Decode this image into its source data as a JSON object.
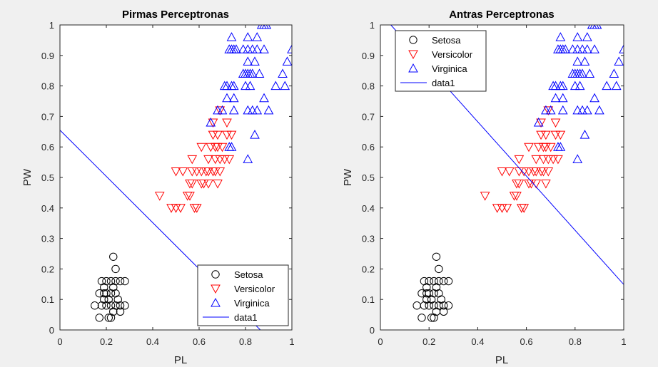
{
  "chart_data": [
    {
      "type": "scatter",
      "title": "Pirmas Perceptronas",
      "xlabel": "PL",
      "ylabel": "PW",
      "xlim": [
        0,
        1
      ],
      "ylim": [
        0,
        1
      ],
      "xticks": [
        "0",
        "0.2",
        "0.4",
        "0.6",
        "0.8",
        "1"
      ],
      "yticks": [
        "0",
        "0.1",
        "0.2",
        "0.3",
        "0.4",
        "0.5",
        "0.6",
        "0.7",
        "0.8",
        "0.9",
        "1"
      ],
      "grid": false,
      "legend_position": "bottom-right",
      "legend": [
        "Setosa",
        "Versicolor",
        "Virginica",
        "data1"
      ],
      "decision_line": {
        "name": "data1",
        "color": "#0000ff",
        "points": [
          [
            0,
            0.655
          ],
          [
            0.864,
            0
          ]
        ]
      }
    },
    {
      "type": "scatter",
      "title": "Antras Perceptronas",
      "xlabel": "PL",
      "ylabel": "PW",
      "xlim": [
        0,
        1
      ],
      "ylim": [
        0,
        1
      ],
      "xticks": [
        "0",
        "0.2",
        "0.4",
        "0.6",
        "0.8",
        "1"
      ],
      "yticks": [
        "0",
        "0.1",
        "0.2",
        "0.3",
        "0.4",
        "0.5",
        "0.6",
        "0.7",
        "0.8",
        "0.9",
        "1"
      ],
      "grid": false,
      "legend_position": "top-left",
      "legend": [
        "Setosa",
        "Versicolor",
        "Virginica",
        "data1"
      ],
      "decision_line": {
        "name": "data1",
        "color": "#0000ff",
        "points": [
          [
            0.043,
            1
          ],
          [
            1,
            0.149
          ]
        ]
      }
    }
  ],
  "series": [
    {
      "name": "Setosa",
      "marker": "circle",
      "color": "#000000",
      "points": [
        [
          0.15,
          0.08
        ],
        [
          0.18,
          0.08
        ],
        [
          0.2,
          0.08
        ],
        [
          0.22,
          0.08
        ],
        [
          0.24,
          0.08
        ],
        [
          0.26,
          0.08
        ],
        [
          0.28,
          0.08
        ],
        [
          0.17,
          0.04
        ],
        [
          0.21,
          0.04
        ],
        [
          0.22,
          0.04
        ],
        [
          0.17,
          0.12
        ],
        [
          0.19,
          0.12
        ],
        [
          0.2,
          0.12
        ],
        [
          0.22,
          0.12
        ],
        [
          0.24,
          0.12
        ],
        [
          0.18,
          0.16
        ],
        [
          0.2,
          0.16
        ],
        [
          0.22,
          0.16
        ],
        [
          0.24,
          0.16
        ],
        [
          0.26,
          0.16
        ],
        [
          0.28,
          0.16
        ],
        [
          0.19,
          0.1
        ],
        [
          0.21,
          0.1
        ],
        [
          0.25,
          0.1
        ],
        [
          0.23,
          0.06
        ],
        [
          0.26,
          0.06
        ],
        [
          0.19,
          0.14
        ],
        [
          0.23,
          0.14
        ],
        [
          0.24,
          0.2
        ],
        [
          0.23,
          0.24
        ]
      ]
    },
    {
      "name": "Versicolor",
      "marker": "triangle-down",
      "color": "#ff0000",
      "points": [
        [
          0.43,
          0.44
        ],
        [
          0.48,
          0.4
        ],
        [
          0.5,
          0.4
        ],
        [
          0.52,
          0.4
        ],
        [
          0.58,
          0.4
        ],
        [
          0.59,
          0.4
        ],
        [
          0.55,
          0.44
        ],
        [
          0.56,
          0.44
        ],
        [
          0.56,
          0.48
        ],
        [
          0.57,
          0.48
        ],
        [
          0.61,
          0.48
        ],
        [
          0.62,
          0.48
        ],
        [
          0.64,
          0.48
        ],
        [
          0.68,
          0.48
        ],
        [
          0.5,
          0.52
        ],
        [
          0.53,
          0.52
        ],
        [
          0.57,
          0.52
        ],
        [
          0.59,
          0.52
        ],
        [
          0.61,
          0.52
        ],
        [
          0.63,
          0.52
        ],
        [
          0.64,
          0.52
        ],
        [
          0.66,
          0.52
        ],
        [
          0.67,
          0.52
        ],
        [
          0.69,
          0.52
        ],
        [
          0.57,
          0.56
        ],
        [
          0.64,
          0.56
        ],
        [
          0.67,
          0.56
        ],
        [
          0.69,
          0.56
        ],
        [
          0.71,
          0.56
        ],
        [
          0.73,
          0.56
        ],
        [
          0.61,
          0.6
        ],
        [
          0.65,
          0.6
        ],
        [
          0.67,
          0.6
        ],
        [
          0.68,
          0.6
        ],
        [
          0.7,
          0.6
        ],
        [
          0.66,
          0.64
        ],
        [
          0.68,
          0.64
        ],
        [
          0.72,
          0.64
        ],
        [
          0.74,
          0.64
        ],
        [
          0.66,
          0.68
        ],
        [
          0.72,
          0.68
        ],
        [
          0.69,
          0.72
        ]
      ]
    },
    {
      "name": "Virginica",
      "marker": "triangle-up",
      "color": "#0000ff",
      "points": [
        [
          0.81,
          0.56
        ],
        [
          0.73,
          0.6
        ],
        [
          0.74,
          0.6
        ],
        [
          0.84,
          0.64
        ],
        [
          0.65,
          0.68
        ],
        [
          0.68,
          0.72
        ],
        [
          0.7,
          0.72
        ],
        [
          0.75,
          0.72
        ],
        [
          0.81,
          0.72
        ],
        [
          0.83,
          0.72
        ],
        [
          0.85,
          0.72
        ],
        [
          0.9,
          0.72
        ],
        [
          0.72,
          0.76
        ],
        [
          0.75,
          0.76
        ],
        [
          0.88,
          0.76
        ],
        [
          0.71,
          0.8
        ],
        [
          0.72,
          0.8
        ],
        [
          0.74,
          0.8
        ],
        [
          0.75,
          0.8
        ],
        [
          0.8,
          0.8
        ],
        [
          0.82,
          0.8
        ],
        [
          0.93,
          0.8
        ],
        [
          0.97,
          0.8
        ],
        [
          0.79,
          0.84
        ],
        [
          0.8,
          0.84
        ],
        [
          0.81,
          0.84
        ],
        [
          0.82,
          0.84
        ],
        [
          0.83,
          0.84
        ],
        [
          0.86,
          0.84
        ],
        [
          0.96,
          0.84
        ],
        [
          0.81,
          0.88
        ],
        [
          0.84,
          0.88
        ],
        [
          0.98,
          0.88
        ],
        [
          0.73,
          0.92
        ],
        [
          0.74,
          0.92
        ],
        [
          0.75,
          0.92
        ],
        [
          0.76,
          0.92
        ],
        [
          0.79,
          0.92
        ],
        [
          0.81,
          0.92
        ],
        [
          0.83,
          0.92
        ],
        [
          0.85,
          0.92
        ],
        [
          0.88,
          0.92
        ],
        [
          1.0,
          0.92
        ],
        [
          0.74,
          0.96
        ],
        [
          0.81,
          0.96
        ],
        [
          0.85,
          0.96
        ],
        [
          0.87,
          1.0
        ],
        [
          0.88,
          1.0
        ],
        [
          0.89,
          1.0
        ]
      ]
    }
  ],
  "style": {
    "figure_background": "#f0f0f0",
    "axes_background": "#ffffff",
    "line_color": "#0000ff"
  }
}
